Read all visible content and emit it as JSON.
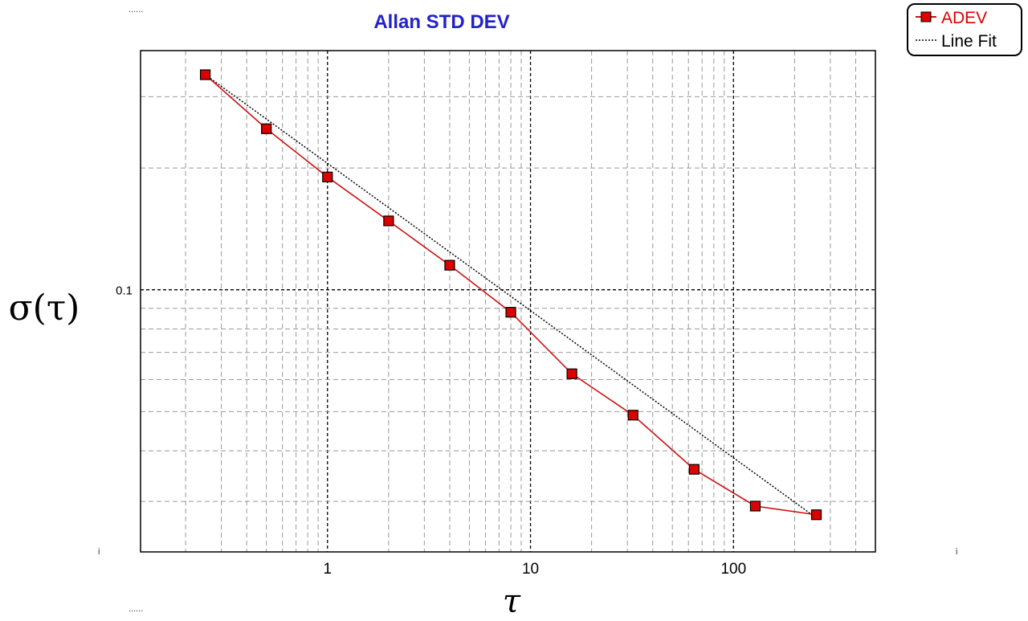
{
  "chart_data": {
    "type": "line",
    "title": "Allan STD DEV",
    "xlabel": "τ",
    "ylabel": "σ(τ)",
    "x_scale": "log",
    "y_scale": "log",
    "xlim": [
      0.12,
      500
    ],
    "ylim": [
      0.0225,
      0.39
    ],
    "grid": true,
    "legend_position": "top-right",
    "x_ticks": [
      {
        "value": 1,
        "label": "1"
      },
      {
        "value": 10,
        "label": "10"
      },
      {
        "value": 100,
        "label": "100"
      }
    ],
    "y_ticks": [
      {
        "value": 0.1,
        "label": "0.1"
      }
    ],
    "series": [
      {
        "name": "ADEV",
        "color": "#cc1111",
        "marker_fill": "#dd0000",
        "marker": "square",
        "x": [
          0.25,
          0.5,
          1,
          2,
          4,
          8,
          16,
          32,
          64,
          128,
          256
        ],
        "y": [
          0.34,
          0.25,
          0.19,
          0.148,
          0.115,
          0.088,
          0.062,
          0.049,
          0.036,
          0.0292,
          0.0278
        ]
      },
      {
        "name": "Line Fit",
        "color": "#000000",
        "style": "dotted",
        "x": [
          0.25,
          256
        ],
        "y": [
          0.34,
          0.0273
        ]
      }
    ]
  },
  "decor": {
    "corner_dots": "......",
    "side_mark": "i"
  }
}
